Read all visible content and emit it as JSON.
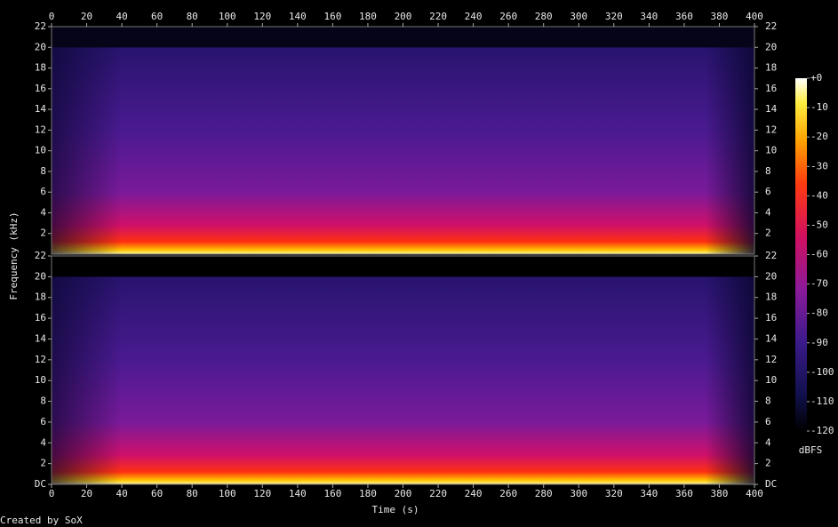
{
  "chart_data": {
    "type": "spectrogram",
    "xlabel": "Time (s)",
    "ylabel": "Frequency (kHz)",
    "xlim": [
      0,
      400
    ],
    "xticks": [
      0,
      20,
      40,
      60,
      80,
      100,
      120,
      140,
      160,
      180,
      200,
      220,
      240,
      260,
      280,
      300,
      320,
      340,
      360,
      380,
      400
    ],
    "channels": [
      {
        "ylim": [
          0,
          22
        ],
        "yticks": [
          2,
          4,
          6,
          8,
          10,
          12,
          14,
          16,
          18,
          20,
          22
        ]
      },
      {
        "ylim": [
          0,
          22
        ],
        "yticks": [
          {
            "value": 0,
            "label": "DC"
          },
          2,
          4,
          6,
          8,
          10,
          12,
          14,
          16,
          18,
          20,
          22
        ]
      }
    ],
    "colorbar": {
      "label": "dBFS",
      "lim": [
        -120,
        0
      ],
      "ticks": [
        {
          "value": 0,
          "label": "+0"
        },
        -10,
        -20,
        -30,
        -40,
        -50,
        -60,
        -70,
        -80,
        -90,
        -100,
        -110,
        -120
      ]
    }
  },
  "footer": "Created by SoX"
}
